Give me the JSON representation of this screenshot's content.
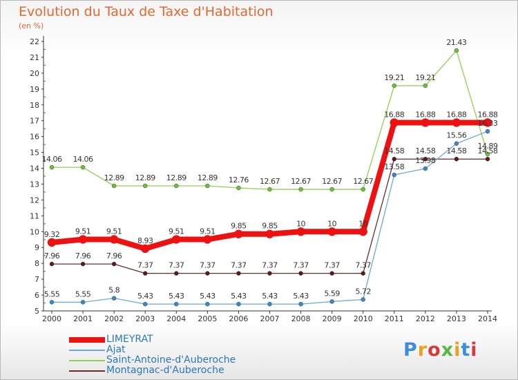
{
  "header": {
    "title": "Evolution du Taux de Taxe d'Habitation",
    "subtitle": "(en %)"
  },
  "logo": {
    "text": "Proxiti"
  },
  "chart_data": {
    "type": "line",
    "x": [
      "2000",
      "2001",
      "2002",
      "2003",
      "2004",
      "2005",
      "2006",
      "2007",
      "2008",
      "2009",
      "2010",
      "2011",
      "2012",
      "2013",
      "2014"
    ],
    "ylim": [
      5,
      22
    ],
    "yticks": [
      "5",
      "6",
      "7",
      "8",
      "9",
      "10",
      "11",
      "12",
      "13",
      "14",
      "15",
      "16",
      "17",
      "18",
      "19",
      "20",
      "21",
      "22"
    ],
    "grid": false,
    "legend_position": "bottom-left",
    "series": [
      {
        "name": "Saint-Antoine-d'Auberoche",
        "color": "#8fd14f",
        "dot": "#6cc03a",
        "width": 1.3,
        "values": [
          14.06,
          14.06,
          12.89,
          12.89,
          12.89,
          12.89,
          12.76,
          12.67,
          12.67,
          12.67,
          12.67,
          19.21,
          19.21,
          21.43,
          14.89
        ],
        "labels": [
          "14.06",
          "14.06",
          "12.89",
          "12.89",
          "12.89",
          "12.89",
          "12.76",
          "12.67",
          "12.67",
          "12.67",
          "12.67",
          "19.21",
          "19.21",
          "21.43",
          "14.89"
        ]
      },
      {
        "name": "Montagnac-d'Auberoche",
        "color": "#6b2a2a",
        "dot": "#5a1a1a",
        "width": 1.3,
        "values": [
          7.96,
          7.96,
          7.96,
          7.37,
          7.37,
          7.37,
          7.37,
          7.37,
          7.37,
          7.37,
          7.37,
          14.58,
          14.58,
          14.58,
          14.58
        ],
        "labels": [
          "7.96",
          "7.96",
          "7.96",
          "7.37",
          "7.37",
          "7.37",
          "7.37",
          "7.37",
          "7.37",
          "7.37",
          "7.37",
          "14.58",
          "14.58",
          "14.58",
          "14.58"
        ]
      },
      {
        "name": "Ajat",
        "color": "#6fa6d8",
        "dot": "#3d86c8",
        "width": 1.3,
        "values": [
          5.55,
          5.55,
          5.8,
          5.43,
          5.43,
          5.43,
          5.43,
          5.43,
          5.43,
          5.59,
          5.72,
          13.58,
          13.98,
          15.56,
          16.33
        ],
        "labels": [
          "5.55",
          "5.55",
          "5.8",
          "5.43",
          "5.43",
          "5.43",
          "5.43",
          "5.43",
          "5.43",
          "5.59",
          "5.72",
          "13.58",
          "13.98",
          "15.56",
          "16.33"
        ]
      },
      {
        "name": "LIMEYRAT",
        "color": "#ee1111",
        "dot": "#ee1111",
        "width": 8,
        "values": [
          9.32,
          9.51,
          9.51,
          8.93,
          9.51,
          9.51,
          9.85,
          9.85,
          10,
          10,
          10,
          16.88,
          16.88,
          16.88,
          16.88
        ],
        "labels": [
          "9.32",
          "9.51",
          "9.51",
          "8.93",
          "9.51",
          "9.51",
          "9.85",
          "9.85",
          "10",
          "10",
          "10",
          "16.88",
          "16.88",
          "16.88",
          "16.88"
        ]
      }
    ],
    "legend_order": [
      "LIMEYRAT",
      "Ajat",
      "Saint-Antoine-d'Auberoche",
      "Montagnac-d'Auberoche"
    ]
  }
}
